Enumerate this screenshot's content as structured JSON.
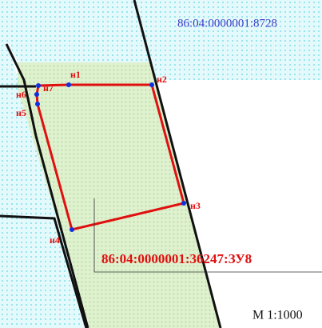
{
  "parcels": [
    {
      "label": "86:04:0000001:8728"
    },
    {
      "label": "86:04:0000001:36247:ЗУ8"
    }
  ],
  "points": [
    "н1",
    "н2",
    "н3",
    "н4",
    "н5",
    "н6",
    "н7"
  ],
  "scale": "М 1:1000"
}
